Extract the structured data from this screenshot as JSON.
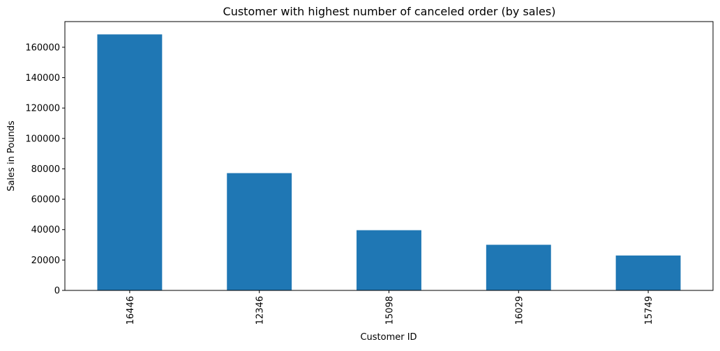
{
  "chart_data": {
    "type": "bar",
    "title": "Customer with highest number of canceled order (by sales)",
    "xlabel": "Customer ID",
    "ylabel": "Sales in Pounds",
    "categories": [
      "16446",
      "12346",
      "15098",
      "16029",
      "15749"
    ],
    "values": [
      168472,
      77184,
      39620,
      30033,
      22975
    ],
    "ylim": [
      0,
      176896
    ],
    "yticks": [
      0,
      20000,
      40000,
      60000,
      80000,
      100000,
      120000,
      140000,
      160000
    ],
    "grid": false,
    "legend": "none",
    "bar_color": "#1f77b4",
    "x_tick_rotation_deg": 90
  }
}
